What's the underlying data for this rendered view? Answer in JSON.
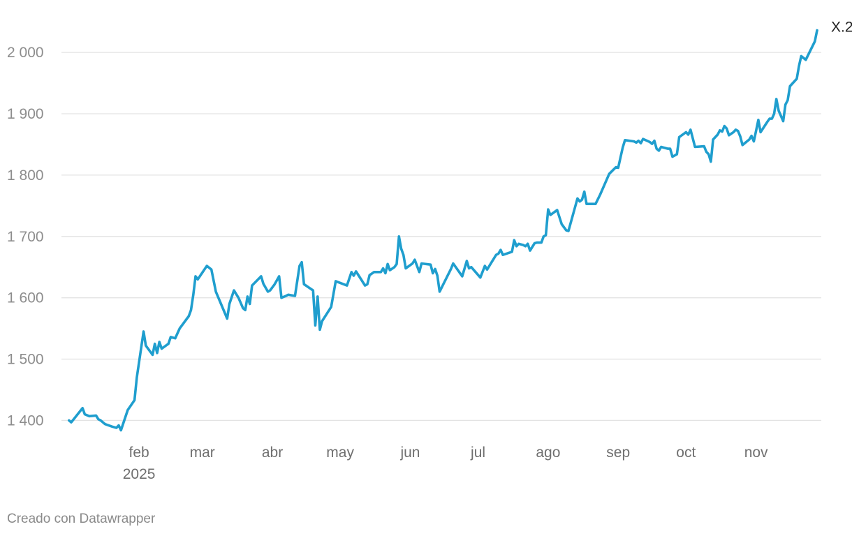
{
  "credit": "Creado con Datawrapper",
  "chart_data": {
    "type": "line",
    "title": "",
    "xlabel": "",
    "ylabel": "",
    "ylim": [
      1380,
      2040
    ],
    "yticks": [
      1400,
      1500,
      1600,
      1700,
      1800,
      1900,
      2000
    ],
    "ytick_labels": [
      "1 400",
      "1 500",
      "1 600",
      "1 700",
      "1 800",
      "1 900",
      "2 000"
    ],
    "grid": true,
    "xlim": [
      "2025-01-02",
      "2025-11-13"
    ],
    "xticks": [
      {
        "date": "2025-02-01",
        "label": "feb",
        "sublabel": "2025"
      },
      {
        "date": "2025-03-01",
        "label": "mar"
      },
      {
        "date": "2025-04-01",
        "label": "abr"
      },
      {
        "date": "2025-05-01",
        "label": "may"
      },
      {
        "date": "2025-06-01",
        "label": "jun"
      },
      {
        "date": "2025-07-01",
        "label": "jul"
      },
      {
        "date": "2025-08-01",
        "label": "ago"
      },
      {
        "date": "2025-09-01",
        "label": "sep"
      },
      {
        "date": "2025-10-01",
        "label": "oct"
      },
      {
        "date": "2025-11-01",
        "label": "nov"
      }
    ],
    "series": [
      {
        "name": "X.2",
        "color": "#1f9ece",
        "points": [
          [
            "2025-01-01",
            1400
          ],
          [
            "2025-01-02",
            1397
          ],
          [
            "2025-01-07",
            1420
          ],
          [
            "2025-01-08",
            1410
          ],
          [
            "2025-01-10",
            1407
          ],
          [
            "2025-01-13",
            1408
          ],
          [
            "2025-01-14",
            1402
          ],
          [
            "2025-01-15",
            1400
          ],
          [
            "2025-01-17",
            1394
          ],
          [
            "2025-01-20",
            1390
          ],
          [
            "2025-01-22",
            1388
          ],
          [
            "2025-01-23",
            1392
          ],
          [
            "2025-01-24",
            1384
          ],
          [
            "2025-01-27",
            1417
          ],
          [
            "2025-01-30",
            1433
          ],
          [
            "2025-01-31",
            1470
          ],
          [
            "2025-02-03",
            1545
          ],
          [
            "2025-02-04",
            1522
          ],
          [
            "2025-02-07",
            1507
          ],
          [
            "2025-02-08",
            1525
          ],
          [
            "2025-02-09",
            1510
          ],
          [
            "2025-02-10",
            1528
          ],
          [
            "2025-02-11",
            1517
          ],
          [
            "2025-02-14",
            1525
          ],
          [
            "2025-02-15",
            1536
          ],
          [
            "2025-02-17",
            1534
          ],
          [
            "2025-02-19",
            1550
          ],
          [
            "2025-02-23",
            1570
          ],
          [
            "2025-02-24",
            1580
          ],
          [
            "2025-02-25",
            1605
          ],
          [
            "2025-02-26",
            1635
          ],
          [
            "2025-02-27",
            1630
          ],
          [
            "2025-03-03",
            1652
          ],
          [
            "2025-03-05",
            1646
          ],
          [
            "2025-03-07",
            1610
          ],
          [
            "2025-03-12",
            1566
          ],
          [
            "2025-03-13",
            1590
          ],
          [
            "2025-03-15",
            1612
          ],
          [
            "2025-03-17",
            1600
          ],
          [
            "2025-03-19",
            1583
          ],
          [
            "2025-03-20",
            1580
          ],
          [
            "2025-03-21",
            1602
          ],
          [
            "2025-03-22",
            1590
          ],
          [
            "2025-03-23",
            1620
          ],
          [
            "2025-03-27",
            1635
          ],
          [
            "2025-03-28",
            1623
          ],
          [
            "2025-03-30",
            1610
          ],
          [
            "2025-03-31",
            1612
          ],
          [
            "2025-04-02",
            1622
          ],
          [
            "2025-04-04",
            1635
          ],
          [
            "2025-04-05",
            1600
          ],
          [
            "2025-04-07",
            1603
          ],
          [
            "2025-04-08",
            1605
          ],
          [
            "2025-04-11",
            1603
          ],
          [
            "2025-04-13",
            1652
          ],
          [
            "2025-04-14",
            1658
          ],
          [
            "2025-04-15",
            1622
          ],
          [
            "2025-04-19",
            1612
          ],
          [
            "2025-04-20",
            1555
          ],
          [
            "2025-04-21",
            1602
          ],
          [
            "2025-04-22",
            1548
          ],
          [
            "2025-04-23",
            1562
          ],
          [
            "2025-04-27",
            1585
          ],
          [
            "2025-04-29",
            1627
          ],
          [
            "2025-05-04",
            1620
          ],
          [
            "2025-05-06",
            1642
          ],
          [
            "2025-05-07",
            1636
          ],
          [
            "2025-05-08",
            1643
          ],
          [
            "2025-05-12",
            1620
          ],
          [
            "2025-05-13",
            1622
          ],
          [
            "2025-05-14",
            1637
          ],
          [
            "2025-05-16",
            1642
          ],
          [
            "2025-05-19",
            1642
          ],
          [
            "2025-05-20",
            1648
          ],
          [
            "2025-05-21",
            1640
          ],
          [
            "2025-05-22",
            1655
          ],
          [
            "2025-05-23",
            1645
          ],
          [
            "2025-05-25",
            1650
          ],
          [
            "2025-05-26",
            1655
          ],
          [
            "2025-05-27",
            1700
          ],
          [
            "2025-05-28",
            1680
          ],
          [
            "2025-05-29",
            1670
          ],
          [
            "2025-05-30",
            1648
          ],
          [
            "2025-06-02",
            1656
          ],
          [
            "2025-06-03",
            1662
          ],
          [
            "2025-06-05",
            1642
          ],
          [
            "2025-06-06",
            1656
          ],
          [
            "2025-06-10",
            1654
          ],
          [
            "2025-06-11",
            1640
          ],
          [
            "2025-06-12",
            1647
          ],
          [
            "2025-06-13",
            1636
          ],
          [
            "2025-06-14",
            1610
          ],
          [
            "2025-06-19",
            1647
          ],
          [
            "2025-06-20",
            1656
          ],
          [
            "2025-06-24",
            1635
          ],
          [
            "2025-06-26",
            1660
          ],
          [
            "2025-06-27",
            1648
          ],
          [
            "2025-06-28",
            1650
          ],
          [
            "2025-07-02",
            1633
          ],
          [
            "2025-07-04",
            1652
          ],
          [
            "2025-07-05",
            1646
          ],
          [
            "2025-07-09",
            1670
          ],
          [
            "2025-07-10",
            1672
          ],
          [
            "2025-07-11",
            1678
          ],
          [
            "2025-07-12",
            1670
          ],
          [
            "2025-07-16",
            1675
          ],
          [
            "2025-07-17",
            1694
          ],
          [
            "2025-07-18",
            1684
          ],
          [
            "2025-07-19",
            1688
          ],
          [
            "2025-07-21",
            1686
          ],
          [
            "2025-07-22",
            1684
          ],
          [
            "2025-07-23",
            1688
          ],
          [
            "2025-07-24",
            1677
          ],
          [
            "2025-07-26",
            1689
          ],
          [
            "2025-07-27",
            1690
          ],
          [
            "2025-07-29",
            1690
          ],
          [
            "2025-07-30",
            1700
          ],
          [
            "2025-07-31",
            1702
          ],
          [
            "2025-08-01",
            1744
          ],
          [
            "2025-08-02",
            1735
          ],
          [
            "2025-08-05",
            1743
          ],
          [
            "2025-08-07",
            1720
          ],
          [
            "2025-08-09",
            1710
          ],
          [
            "2025-08-10",
            1709
          ],
          [
            "2025-08-14",
            1762
          ],
          [
            "2025-08-15",
            1757
          ],
          [
            "2025-08-16",
            1760
          ],
          [
            "2025-08-17",
            1773
          ],
          [
            "2025-08-18",
            1753
          ],
          [
            "2025-08-22",
            1753
          ],
          [
            "2025-08-24",
            1768
          ],
          [
            "2025-08-28",
            1802
          ],
          [
            "2025-08-31",
            1813
          ],
          [
            "2025-09-01",
            1812
          ],
          [
            "2025-09-03",
            1845
          ],
          [
            "2025-09-04",
            1857
          ],
          [
            "2025-09-08",
            1855
          ],
          [
            "2025-09-09",
            1853
          ],
          [
            "2025-09-10",
            1856
          ],
          [
            "2025-09-11",
            1852
          ],
          [
            "2025-09-12",
            1859
          ],
          [
            "2025-09-15",
            1854
          ],
          [
            "2025-09-16",
            1851
          ],
          [
            "2025-09-17",
            1856
          ],
          [
            "2025-09-18",
            1843
          ],
          [
            "2025-09-19",
            1840
          ],
          [
            "2025-09-20",
            1846
          ],
          [
            "2025-09-23",
            1843
          ],
          [
            "2025-09-24",
            1843
          ],
          [
            "2025-09-25",
            1830
          ],
          [
            "2025-09-26",
            1832
          ],
          [
            "2025-09-27",
            1834
          ],
          [
            "2025-09-28",
            1862
          ],
          [
            "2025-10-01",
            1870
          ],
          [
            "2025-10-02",
            1866
          ],
          [
            "2025-10-03",
            1874
          ],
          [
            "2025-10-05",
            1846
          ],
          [
            "2025-10-09",
            1847
          ],
          [
            "2025-10-10",
            1838
          ],
          [
            "2025-10-11",
            1834
          ],
          [
            "2025-10-12",
            1822
          ],
          [
            "2025-10-13",
            1858
          ],
          [
            "2025-10-15",
            1866
          ],
          [
            "2025-10-16",
            1873
          ],
          [
            "2025-10-17",
            1871
          ],
          [
            "2025-10-18",
            1880
          ],
          [
            "2025-10-19",
            1876
          ],
          [
            "2025-10-20",
            1865
          ],
          [
            "2025-10-22",
            1870
          ],
          [
            "2025-10-23",
            1874
          ],
          [
            "2025-10-24",
            1872
          ],
          [
            "2025-10-25",
            1863
          ],
          [
            "2025-10-26",
            1849
          ],
          [
            "2025-10-29",
            1858
          ],
          [
            "2025-10-30",
            1864
          ],
          [
            "2025-10-31",
            1855
          ],
          [
            "2025-11-01",
            1872
          ],
          [
            "2025-11-02",
            1890
          ],
          [
            "2025-11-03",
            1870
          ],
          [
            "2025-11-06",
            1887
          ],
          [
            "2025-11-07",
            1892
          ],
          [
            "2025-11-08",
            1892
          ],
          [
            "2025-11-09",
            1900
          ],
          [
            "2025-11-10",
            1924
          ],
          [
            "2025-11-11",
            1905
          ],
          [
            "2025-11-13",
            1888
          ],
          [
            "2025-11-14",
            1915
          ],
          [
            "2025-11-15",
            1922
          ],
          [
            "2025-11-16",
            1945
          ],
          [
            "2025-11-19",
            1957
          ],
          [
            "2025-11-20",
            1978
          ],
          [
            "2025-11-21",
            1994
          ],
          [
            "2025-11-23",
            1988
          ],
          [
            "2025-11-27",
            2018
          ],
          [
            "2025-11-28",
            2036
          ]
        ]
      }
    ]
  }
}
